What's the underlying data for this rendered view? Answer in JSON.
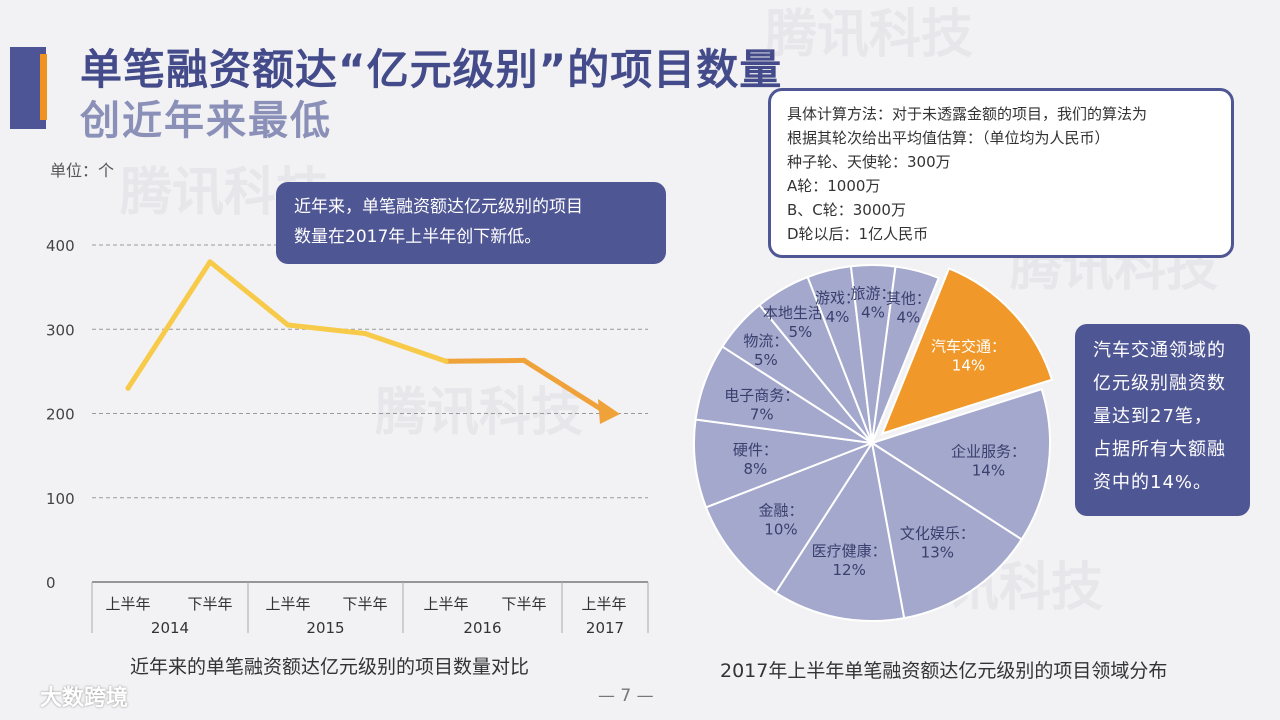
{
  "title": {
    "line1": "单笔融资额达“亿元级别”的项目数量",
    "line2": "创近年来最低"
  },
  "watermark": "腾讯科技",
  "footer": {
    "logo": "大数跨境",
    "page": "— 7 —"
  },
  "line_chart_unit": "单位：个",
  "bubble_top": {
    "lines": [
      "近年来，单笔融资额达亿元级别的项目",
      "数量在2017年上半年创下新低。"
    ]
  },
  "method_box": {
    "lines": [
      "具体计算方法：对于未透露金额的项目，我们的算法为",
      "根据其轮次给出平均值估算：（单位均为人民币）",
      "种子轮、天使轮：300万",
      "A轮：1000万",
      "B、C轮：3000万",
      "D轮以后：1亿人民币"
    ]
  },
  "bubble_right": {
    "lines": [
      "汽车交通领域的",
      "亿元级别融资数",
      "量达到27笔，",
      "占据所有大额融",
      "资中的14%。"
    ]
  },
  "colors": {
    "line": "#f7ca4a",
    "line_end": "#f0a23a",
    "pie_fill": "#a3a8cc",
    "pie_stroke": "#ffffff",
    "pie_highlight": "#f0992a",
    "grid": "#999999"
  },
  "chart_data": [
    {
      "type": "line",
      "title": "近年来的单笔融资额达亿元级别的项目数量对比",
      "ylabel": "单位：个",
      "ylim": [
        0,
        400
      ],
      "yticks": [
        0,
        100,
        200,
        300,
        400
      ],
      "categories": [
        "上半年",
        "下半年",
        "上半年",
        "下半年",
        "上半年",
        "下半年",
        "上半年"
      ],
      "year_groups": [
        {
          "year": "2014",
          "count": 2
        },
        {
          "year": "2015",
          "count": 2
        },
        {
          "year": "2016",
          "count": 2
        },
        {
          "year": "2017",
          "count": 1
        }
      ],
      "values": [
        230,
        380,
        305,
        295,
        262,
        263,
        203
      ],
      "grid": true
    },
    {
      "type": "pie",
      "title": "2017年上半年单笔融资额达亿元级别的项目领域分布",
      "slices": [
        {
          "label": "汽车交通：",
          "pct": "14%",
          "value": 14,
          "highlight": true
        },
        {
          "label": "企业服务：",
          "pct": "14%",
          "value": 14
        },
        {
          "label": "文化娱乐：",
          "pct": "13%",
          "value": 13
        },
        {
          "label": "医疗健康：",
          "pct": "12%",
          "value": 12
        },
        {
          "label": "金融：",
          "pct": "10%",
          "value": 10
        },
        {
          "label": "硬件：",
          "pct": "8%",
          "value": 8
        },
        {
          "label": "电子商务：",
          "pct": "7%",
          "value": 7
        },
        {
          "label": "物流：",
          "pct": "5%",
          "value": 5
        },
        {
          "label": "本地生活：",
          "pct": "5%",
          "value": 5
        },
        {
          "label": "游戏：",
          "pct": "4%",
          "value": 4
        },
        {
          "label": "旅游：",
          "pct": "4%",
          "value": 4
        },
        {
          "label": "其他：",
          "pct": "4%",
          "value": 4
        }
      ]
    }
  ]
}
